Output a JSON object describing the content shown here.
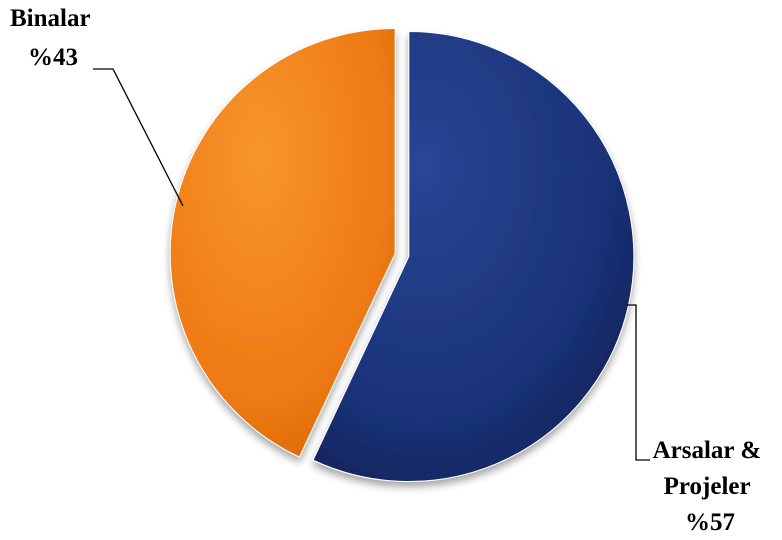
{
  "chart_data": {
    "type": "pie",
    "title": "",
    "slices": [
      {
        "name": "Arsalar & Projeler",
        "value": 57,
        "label_lines": [
          "Arsalar &",
          "Projeler",
          "%57"
        ],
        "color": "#1a3278"
      },
      {
        "name": "Binalar",
        "value": 43,
        "label_lines": [
          "Binalar",
          "%43"
        ],
        "color": "#ef7a14"
      }
    ],
    "legend": "none",
    "exploded": true
  }
}
